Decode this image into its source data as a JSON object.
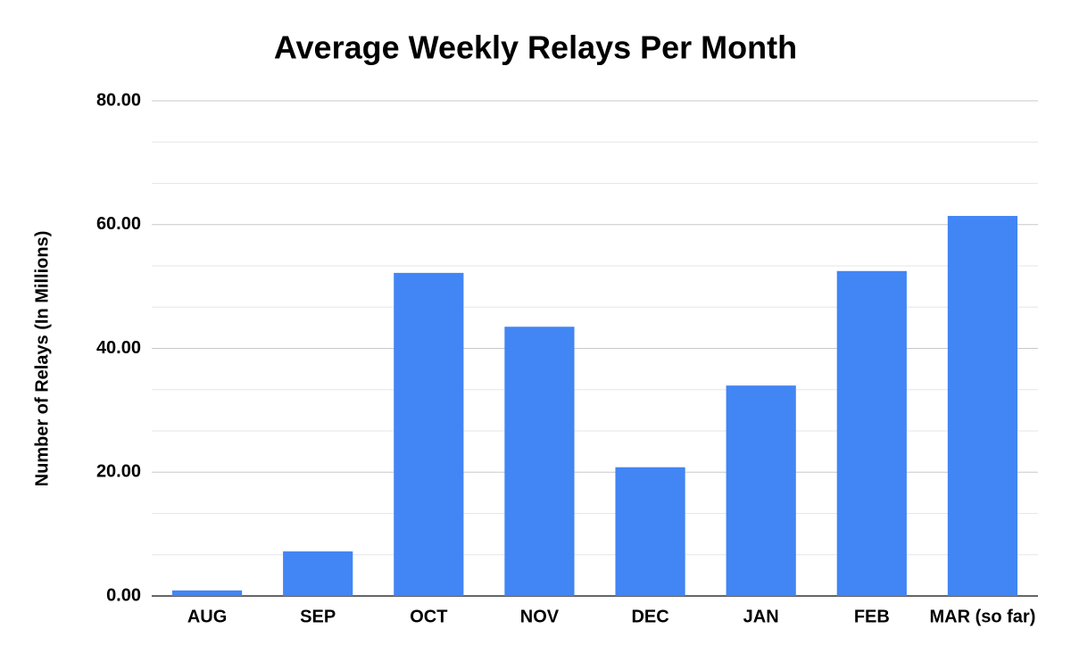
{
  "chart_data": {
    "type": "bar",
    "title": "Average Weekly Relays Per Month",
    "y_label": "Number of Relays (In Millions)",
    "categories": [
      "AUG",
      "SEP",
      "OCT",
      "NOV",
      "DEC",
      "JAN",
      "FEB",
      "MAR (so far)"
    ],
    "values": [
      0.9,
      7.2,
      52.2,
      43.5,
      20.8,
      34.0,
      52.5,
      61.4
    ],
    "color": "#4285f4",
    "ylim": [
      0,
      80
    ],
    "yticks": [
      {
        "value": 0,
        "label": "0.00"
      },
      {
        "value": 20,
        "label": "20.00"
      },
      {
        "value": 40,
        "label": "40.00"
      },
      {
        "value": 60,
        "label": "60.00"
      },
      {
        "value": 80,
        "label": "80.00"
      }
    ],
    "minor_yticks": [
      6.67,
      13.33,
      26.67,
      33.33,
      46.67,
      53.33,
      66.67,
      73.33
    ],
    "grid": true
  }
}
